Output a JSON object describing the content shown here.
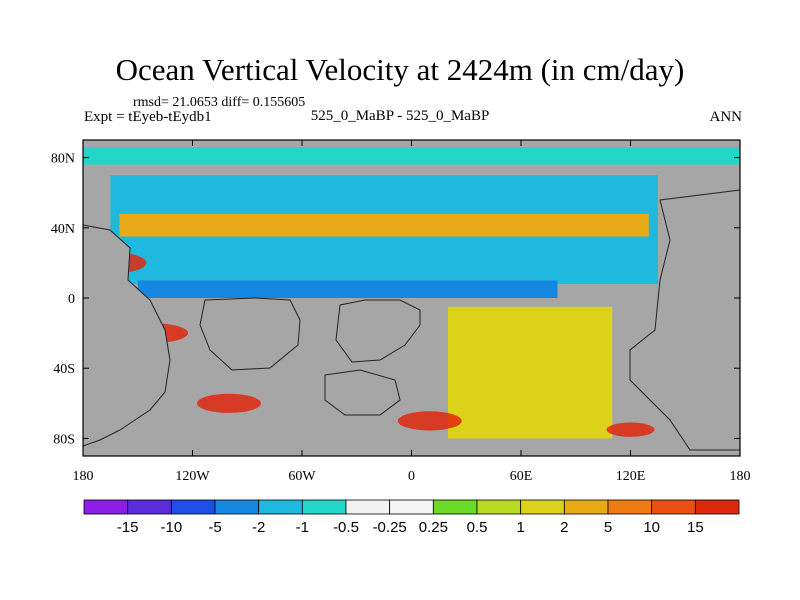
{
  "chart_data": {
    "type": "heatmap",
    "title": "Ocean Vertical Velocity at 2424m (in cm/day)",
    "stats_line": "rmsd= 21.0653 diff= 0.155605",
    "left_label": "Expt = tEyeb-tEydb1",
    "center_label": "525_0_MaBP - 525_0_MaBP",
    "right_label": "ANN",
    "x_axis": {
      "range": [
        -180,
        180
      ],
      "ticks": [
        -180,
        -120,
        -60,
        0,
        60,
        120,
        180
      ],
      "tick_labels": [
        "180",
        "120W",
        "60W",
        "0",
        "60E",
        "120E",
        "180"
      ]
    },
    "y_axis": {
      "range": [
        -90,
        90
      ],
      "ticks": [
        80,
        40,
        0,
        -40,
        -80
      ],
      "tick_labels": [
        "80N",
        "40N",
        "0",
        "40S",
        "80S"
      ]
    },
    "land_color": "#a6a6a6",
    "colorbar": {
      "colors": [
        "#8c1ee6",
        "#5a2cdc",
        "#1f4de8",
        "#1687e0",
        "#1fb9e0",
        "#22d7c8",
        "#f2f2f2",
        "#f5f5f5",
        "#6ad928",
        "#b9dc22",
        "#dcd21a",
        "#e8aa16",
        "#ee7a12",
        "#ea4f14",
        "#e0280e"
      ],
      "labels": [
        "-15",
        "-10",
        "-5",
        "-2",
        "-1",
        "-0.5",
        "-0.25",
        "0.25",
        "0.5",
        "1",
        "2",
        "5",
        "10",
        "15"
      ]
    },
    "field_regions": [
      {
        "name": "arctic-band",
        "color_index": 5,
        "lon": [
          -180,
          180
        ],
        "lat": [
          76,
          86
        ]
      },
      {
        "name": "north-pacific-basin",
        "color_index": 4,
        "lon": [
          -165,
          135
        ],
        "lat": [
          8,
          70
        ]
      },
      {
        "name": "subtropical-warm-band",
        "color_index": 11,
        "lon": [
          -160,
          130
        ],
        "lat": [
          35,
          48
        ]
      },
      {
        "name": "equatorial-band",
        "color_index": 3,
        "lon": [
          -150,
          80
        ],
        "lat": [
          0,
          10
        ]
      },
      {
        "name": "eastern-basin",
        "color_index": 10,
        "lon": [
          20,
          110
        ],
        "lat": [
          -80,
          -5
        ]
      }
    ]
  }
}
